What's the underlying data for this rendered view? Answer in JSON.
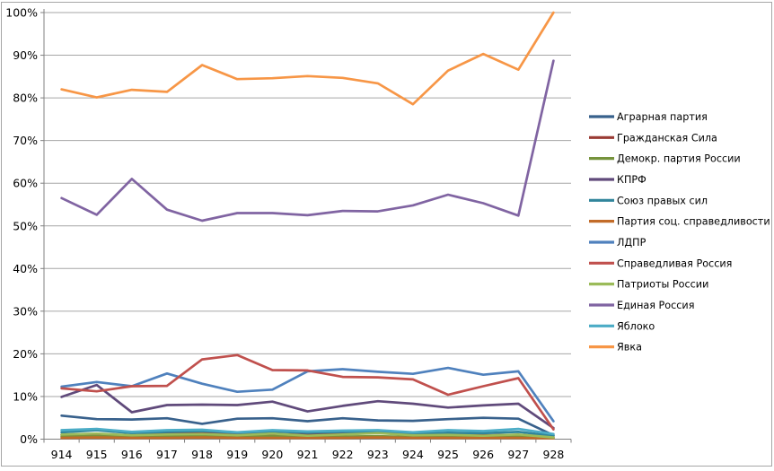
{
  "chart_data": {
    "type": "line",
    "title": "",
    "x_categories": [
      "914",
      "915",
      "916",
      "917",
      "918",
      "919",
      "920",
      "921",
      "922",
      "923",
      "924",
      "925",
      "926",
      "927",
      "928"
    ],
    "y_tick_labels": [
      "0%",
      "10%",
      "20%",
      "30%",
      "40%",
      "50%",
      "60%",
      "70%",
      "80%",
      "90%",
      "100%"
    ],
    "ylim": [
      0,
      100
    ],
    "grid": true,
    "legend_position": "right",
    "series": [
      {
        "name": "Аграрная партия",
        "color": "#38618C",
        "values": [
          5.5,
          4.7,
          4.6,
          4.9,
          3.6,
          4.8,
          4.9,
          4.2,
          4.9,
          4.4,
          4.3,
          4.7,
          5.0,
          4.8,
          0.9
        ]
      },
      {
        "name": "Гражданская Сила",
        "color": "#9A3B35",
        "values": [
          1.0,
          1.1,
          0.8,
          1.4,
          1.6,
          1.1,
          1.2,
          1.0,
          1.3,
          1.5,
          1.0,
          1.3,
          0.9,
          1.0,
          0.5
        ]
      },
      {
        "name": "Демокр. партия России",
        "color": "#76933C",
        "values": [
          0.6,
          0.7,
          0.5,
          0.7,
          0.8,
          0.6,
          0.7,
          0.5,
          0.6,
          0.7,
          0.5,
          0.6,
          0.5,
          0.6,
          0.3
        ]
      },
      {
        "name": "КПРФ",
        "color": "#604A7B",
        "values": [
          9.9,
          12.7,
          6.3,
          8.0,
          8.1,
          8.0,
          8.8,
          6.5,
          7.8,
          8.9,
          8.3,
          7.4,
          7.9,
          8.3,
          2.6
        ]
      },
      {
        "name": "Союз правых сил",
        "color": "#31859B",
        "values": [
          1.6,
          2.1,
          1.4,
          1.7,
          1.9,
          1.5,
          1.8,
          1.5,
          1.7,
          1.6,
          1.3,
          1.5,
          1.4,
          1.7,
          0.8
        ]
      },
      {
        "name": "Партия соц. справедливости",
        "color": "#C26B28",
        "values": [
          0.3,
          0.4,
          0.3,
          0.3,
          0.4,
          0.3,
          0.3,
          0.3,
          0.3,
          0.4,
          0.3,
          0.3,
          0.3,
          0.3,
          0.2
        ]
      },
      {
        "name": "ЛДПР",
        "color": "#4F81BD",
        "values": [
          12.3,
          13.4,
          12.4,
          15.4,
          13.0,
          11.1,
          11.6,
          15.9,
          16.4,
          15.8,
          15.3,
          16.7,
          15.1,
          15.9,
          4.2
        ]
      },
      {
        "name": "Справедливая Россия",
        "color": "#C0504D",
        "values": [
          11.9,
          11.2,
          12.4,
          12.5,
          18.7,
          19.7,
          16.2,
          16.1,
          14.6,
          14.5,
          14.0,
          10.4,
          12.4,
          14.3,
          2.3
        ]
      },
      {
        "name": "Патриоты России",
        "color": "#9BBB59",
        "values": [
          1.1,
          1.3,
          0.9,
          1.1,
          1.2,
          0.9,
          1.3,
          0.8,
          1.1,
          1.4,
          0.9,
          1.0,
          0.8,
          1.1,
          0.4
        ]
      },
      {
        "name": "Единая Россия",
        "color": "#8064A2",
        "values": [
          56.5,
          52.6,
          61.0,
          53.8,
          51.2,
          53.0,
          53.0,
          52.5,
          53.5,
          53.4,
          54.8,
          57.3,
          55.3,
          52.4,
          88.7
        ]
      },
      {
        "name": "Яблоко",
        "color": "#4BACC6",
        "values": [
          2.1,
          2.4,
          1.7,
          2.1,
          2.2,
          1.6,
          2.1,
          1.8,
          2.0,
          2.1,
          1.6,
          2.1,
          1.9,
          2.4,
          1.2
        ]
      },
      {
        "name": "Явка",
        "color": "#F79646",
        "values": [
          82.0,
          80.1,
          81.9,
          81.4,
          87.7,
          84.4,
          84.6,
          85.1,
          84.7,
          83.4,
          78.5,
          86.4,
          90.3,
          86.6,
          100.0
        ]
      }
    ]
  },
  "colors": {
    "axis": "#808080",
    "gridline": "#A6A6A6",
    "border": "#A6A6A6",
    "text": "#000000",
    "background": "#FFFFFF"
  }
}
